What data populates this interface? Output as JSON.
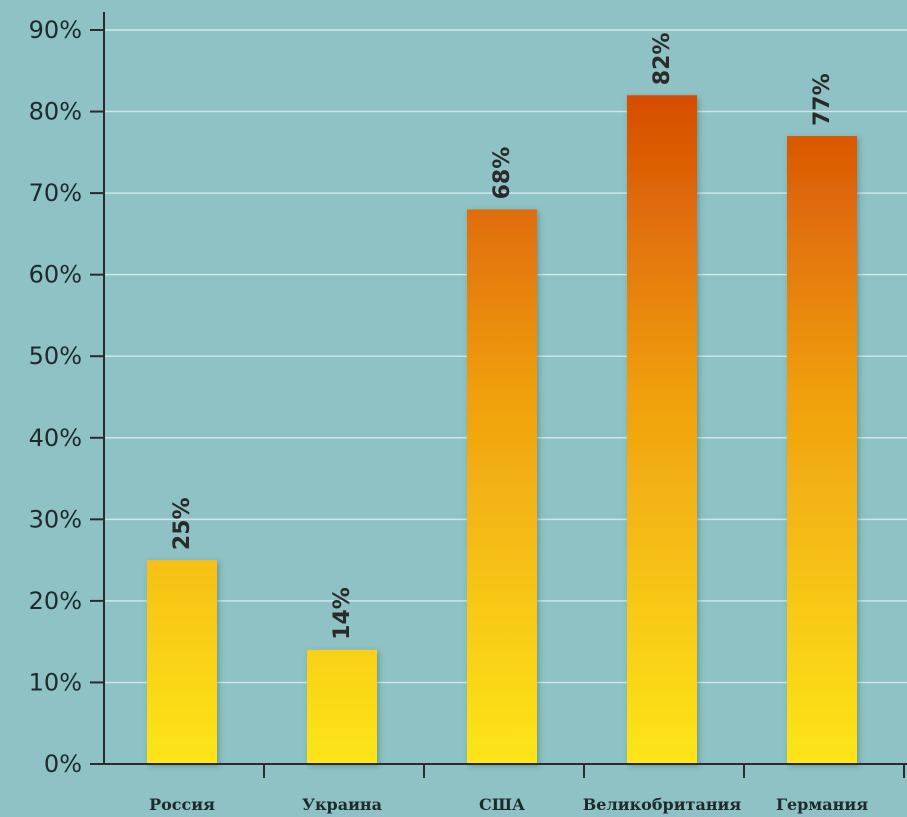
{
  "chart_data": {
    "type": "bar",
    "categories": [
      "Россия",
      "Украина",
      "США",
      "Великобритания",
      "Германия"
    ],
    "values": [
      25,
      14,
      68,
      82,
      77
    ],
    "value_labels": [
      "25%",
      "14%",
      "68%",
      "82%",
      "77%"
    ],
    "title": "",
    "xlabel": "",
    "ylabel": "",
    "ylim": [
      0,
      90
    ],
    "yticks": [
      0,
      10,
      20,
      30,
      40,
      50,
      60,
      70,
      80,
      90
    ],
    "ytick_labels": [
      "0%",
      "10%",
      "20%",
      "30%",
      "40%",
      "50%",
      "60%",
      "70%",
      "80%",
      "90%"
    ],
    "grid": true,
    "legend": "none",
    "colors": {
      "background": "#8ec2c4",
      "grid": "#d9eef0",
      "axis": "#2b2b2b",
      "bar_bottom": "#fde61a",
      "bar_mid": "#f0a010",
      "bar_top": "#d13a00"
    }
  }
}
